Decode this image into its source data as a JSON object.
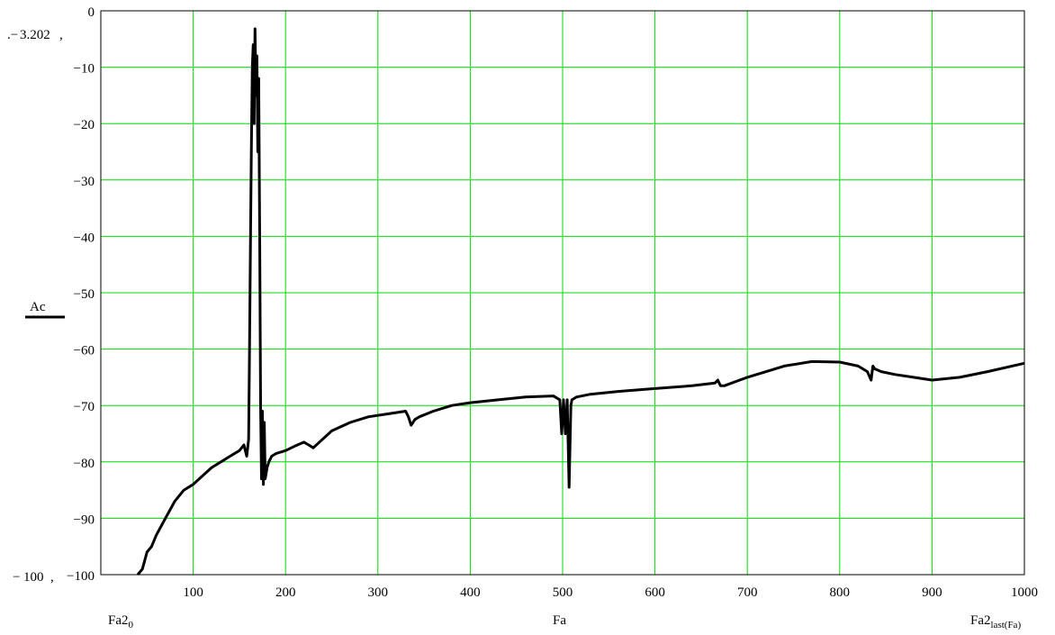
{
  "chart_data": {
    "type": "line",
    "title": "",
    "xlabel": "Fa",
    "ylabel": "Ac",
    "xlim": [
      0,
      1000
    ],
    "ylim": [
      -100,
      0
    ],
    "grid": true,
    "grid_color": "#00dd00",
    "line_color": "#000000",
    "x_ticks": [
      0,
      100,
      200,
      300,
      400,
      500,
      600,
      700,
      800,
      900,
      1000
    ],
    "x_tick_labels": [
      "",
      "100",
      "200",
      "300",
      "400",
      "500",
      "600",
      "700",
      "800",
      "900",
      "1000"
    ],
    "y_ticks": [
      0,
      -10,
      -20,
      -30,
      -40,
      -50,
      -60,
      -70,
      -80,
      -90,
      -100
    ],
    "y_tick_labels": [
      "0",
      "−10",
      "−20",
      "−30",
      "−40",
      "−50",
      "−60",
      "−70",
      "−80",
      "−90",
      "−100"
    ],
    "y_max_marker": "3.202",
    "y_min_marker": "100",
    "x_min_label": {
      "base": "Fa2",
      "sub": "0"
    },
    "x_max_label": {
      "base": "Fa2",
      "sub": "last(Fa)"
    },
    "series": [
      {
        "x": [
          40,
          45,
          50,
          55,
          60,
          70,
          80,
          90,
          100,
          110,
          120,
          130,
          140,
          150,
          155,
          158,
          160,
          161,
          162,
          163,
          164,
          165,
          166,
          167,
          168,
          169,
          170,
          171,
          172,
          173,
          174,
          175,
          176,
          177,
          178,
          179,
          180,
          182,
          185,
          190,
          200,
          210,
          220,
          225,
          230,
          240,
          250,
          270,
          290,
          310,
          330,
          333,
          336,
          338,
          340,
          345,
          360,
          380,
          400,
          430,
          460,
          490,
          497,
          499,
          501,
          503,
          505,
          507,
          509,
          510,
          515,
          530,
          560,
          600,
          640,
          665,
          668,
          671,
          675,
          700,
          740,
          770,
          800,
          820,
          830,
          834,
          836,
          838,
          845,
          860,
          880,
          900,
          930,
          960,
          1000
        ],
        "y": [
          -100,
          -99,
          -96,
          -95,
          -93,
          -90,
          -87,
          -85,
          -84,
          -82.5,
          -81,
          -80,
          -79,
          -78,
          -77,
          -79,
          -76,
          -60,
          -42,
          -25,
          -10,
          -6,
          -20,
          -3.2,
          -15,
          -8,
          -25,
          -12,
          -40,
          -70,
          -83,
          -71,
          -84,
          -73,
          -83,
          -82,
          -81,
          -80,
          -79,
          -78.5,
          -78,
          -77.2,
          -76.5,
          -77,
          -77.5,
          -76,
          -74.5,
          -73,
          -72,
          -71.5,
          -71,
          -72,
          -73.5,
          -73,
          -72.5,
          -72,
          -71,
          -70,
          -69.5,
          -69,
          -68.5,
          -68.3,
          -69,
          -75,
          -69,
          -75,
          -69,
          -84.5,
          -70,
          -69,
          -68.5,
          -68,
          -67.5,
          -67,
          -66.5,
          -66,
          -65.5,
          -66.5,
          -66.5,
          -65,
          -63,
          -62.2,
          -62.3,
          -63,
          -64,
          -65.5,
          -63,
          -63.5,
          -64,
          -64.5,
          -65,
          -65.5,
          -65,
          -64,
          -62.5
        ]
      }
    ]
  }
}
